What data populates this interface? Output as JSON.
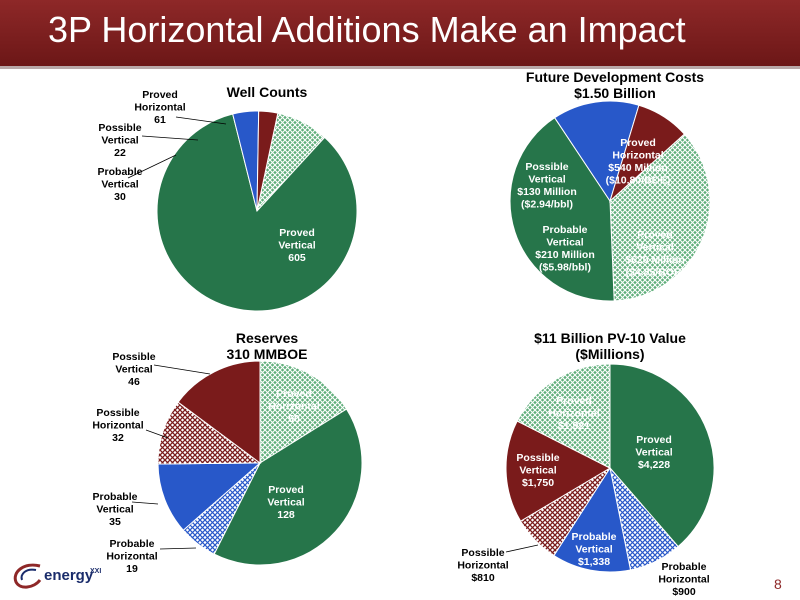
{
  "slide": {
    "title": "3P Horizontal Additions Make an Impact",
    "page_number": "8",
    "logo_text": "energy",
    "logo_sup": "XXI"
  },
  "colors": {
    "green": "#26754a",
    "green_light": "#6fb98a",
    "blue": "#2858c9",
    "blue_light": "#9fb7ee",
    "red": "#7a1b1b",
    "red_light": "#c88a8a"
  },
  "chart_data": [
    {
      "id": "well-counts",
      "type": "pie",
      "title": "Well Counts",
      "title_line2": "",
      "slices": [
        {
          "name": "Proved Horizontal",
          "value": 61,
          "color": "green",
          "pattern": true,
          "label": [
            "Proved",
            "Horizontal",
            "61"
          ]
        },
        {
          "name": "Proved Vertical",
          "value": 605,
          "color": "green",
          "pattern": false,
          "label": [
            "Proved",
            "Vertical",
            "605"
          ]
        },
        {
          "name": "Probable Vertical",
          "value": 30,
          "color": "blue",
          "pattern": false,
          "label": [
            "Probable",
            "Vertical",
            "30"
          ]
        },
        {
          "name": "Possible Vertical",
          "value": 22,
          "color": "red",
          "pattern": false,
          "label": [
            "Possible",
            "Vertical",
            "22"
          ]
        }
      ]
    },
    {
      "id": "future-development-costs",
      "type": "pie",
      "title": "Future Development Costs",
      "title_line2": "$1.50 Billion",
      "slices": [
        {
          "name": "Proved Horizontal",
          "value": 540,
          "color": "green",
          "pattern": true,
          "label": [
            "Proved",
            "Horizontal",
            "$540 Million",
            "($10.80/BOE)"
          ]
        },
        {
          "name": "Proved Vertical",
          "value": 620,
          "color": "green",
          "pattern": false,
          "label": [
            "Proved",
            "Vertical",
            "$620 Million",
            "($4.85/BOE)"
          ]
        },
        {
          "name": "Probable Vertical",
          "value": 210,
          "color": "blue",
          "pattern": false,
          "label": [
            "Probable",
            "Vertical",
            "$210 Million",
            "($5.98/bbl)"
          ]
        },
        {
          "name": "Possible Vertical",
          "value": 130,
          "color": "red",
          "pattern": false,
          "label": [
            "Possible",
            "Vertical",
            "$130 Million",
            "($2.94/bbl)"
          ]
        }
      ]
    },
    {
      "id": "reserves",
      "type": "pie",
      "title": "Reserves",
      "title_line2": "310 MMBOE",
      "slices": [
        {
          "name": "Proved Horizontal",
          "value": 50,
          "color": "green",
          "pattern": true,
          "label": [
            "Proved",
            "Horizontal",
            "50"
          ]
        },
        {
          "name": "Proved Vertical",
          "value": 128,
          "color": "green",
          "pattern": false,
          "label": [
            "Proved",
            "Vertical",
            "128"
          ]
        },
        {
          "name": "Probable Horizontal",
          "value": 19,
          "color": "blue",
          "pattern": true,
          "label": [
            "Probable",
            "Horizontal",
            "19"
          ]
        },
        {
          "name": "Probable Vertical",
          "value": 35,
          "color": "blue",
          "pattern": false,
          "label": [
            "Probable",
            "Vertical",
            "35"
          ]
        },
        {
          "name": "Possible Horizontal",
          "value": 32,
          "color": "red",
          "pattern": true,
          "label": [
            "Possible",
            "Horizontal",
            "32"
          ]
        },
        {
          "name": "Possible Vertical",
          "value": 46,
          "color": "red",
          "pattern": false,
          "label": [
            "Possible",
            "Vertical",
            "46"
          ]
        }
      ]
    },
    {
      "id": "pv10-value",
      "type": "pie",
      "title": "$11 Billion PV-10 Value",
      "title_line2": "($Millions)",
      "slices": [
        {
          "name": "Proved Vertical",
          "value": 4228,
          "color": "green",
          "pattern": false,
          "label": [
            "Proved",
            "Vertical",
            "$4,228"
          ]
        },
        {
          "name": "Probable Horizontal",
          "value": 900,
          "color": "blue",
          "pattern": true,
          "label": [
            "Probable",
            "Horizontal",
            "$900"
          ]
        },
        {
          "name": "Probable Vertical",
          "value": 1338,
          "color": "blue",
          "pattern": false,
          "label": [
            "Probable",
            "Vertical",
            "$1,338"
          ]
        },
        {
          "name": "Possible Horizontal",
          "value": 810,
          "color": "red",
          "pattern": true,
          "label": [
            "Possible",
            "Horizontal",
            "$810"
          ]
        },
        {
          "name": "Possible Vertical",
          "value": 1750,
          "color": "red",
          "pattern": false,
          "label": [
            "Possible",
            "Vertical",
            "$1,750"
          ]
        },
        {
          "name": "Proved Horizontal",
          "value": 1921,
          "color": "green",
          "pattern": true,
          "label": [
            "Proved",
            "Horizontal",
            "$1,921"
          ]
        }
      ]
    }
  ]
}
